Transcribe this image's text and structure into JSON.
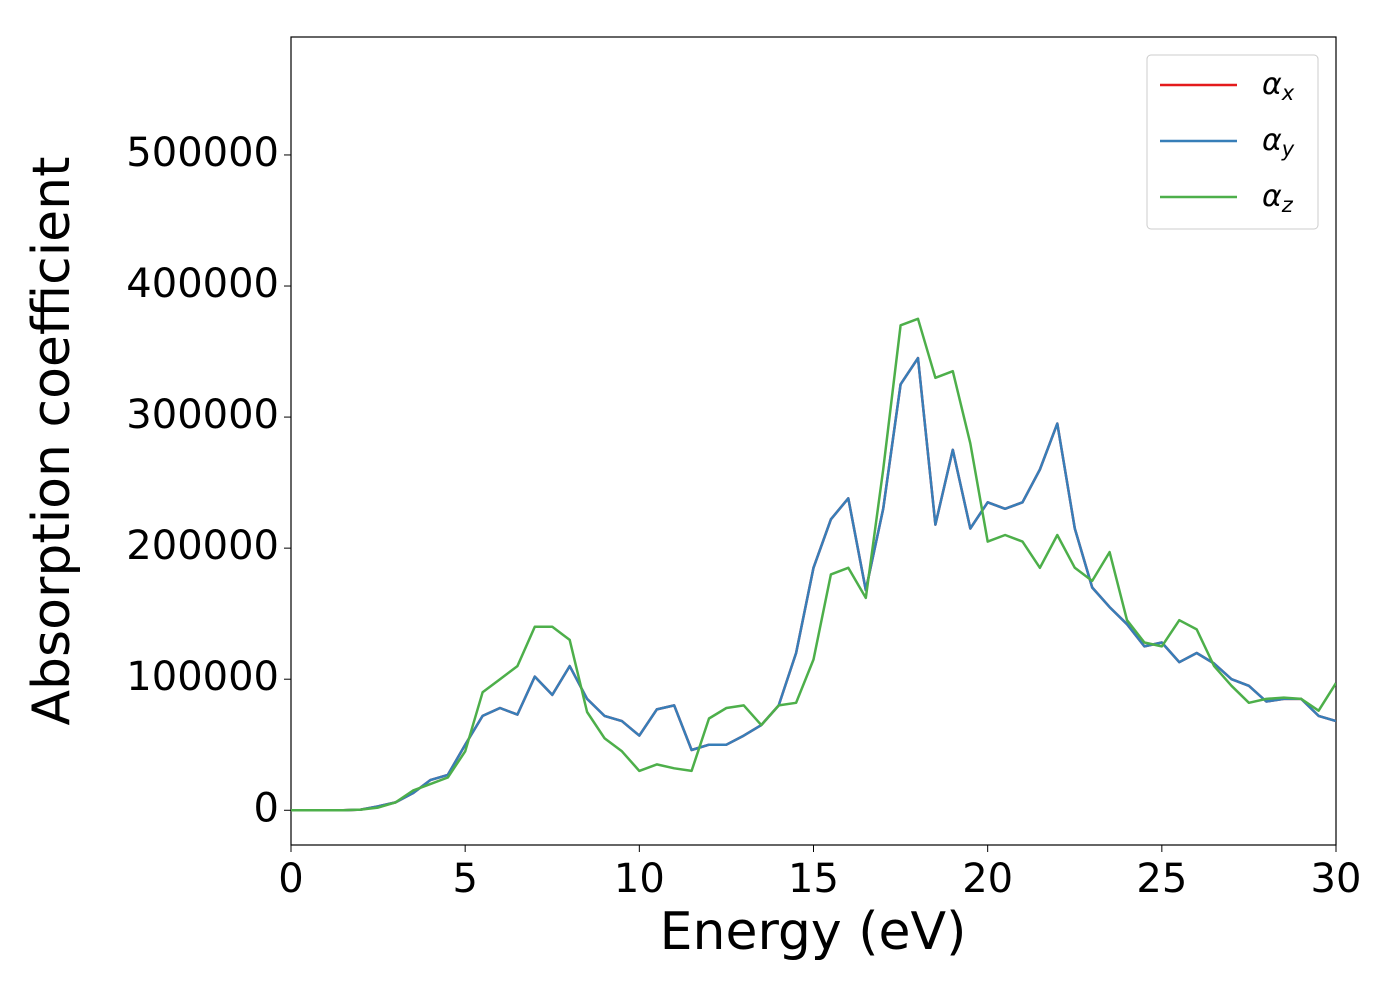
{
  "chart_data": {
    "type": "line",
    "x_label": "Energy (eV)",
    "y_label": "Absorption coefficient",
    "x": [
      0,
      0.5,
      1,
      1.5,
      2,
      2.5,
      3,
      3.5,
      4,
      4.5,
      5,
      5.5,
      6,
      6.5,
      7,
      7.5,
      8,
      8.5,
      9,
      9.5,
      10,
      10.5,
      11,
      11.5,
      12,
      12.5,
      13,
      13.5,
      14,
      14.5,
      15,
      15.5,
      16,
      16.5,
      17,
      17.5,
      18,
      18.5,
      19,
      19.5,
      20,
      20.5,
      21,
      21.5,
      22,
      22.5,
      23,
      23.5,
      24,
      24.5,
      25,
      25.5,
      26,
      26.5,
      27,
      27.5,
      28,
      28.5,
      29,
      29.5,
      30
    ],
    "series": [
      {
        "name": "αx",
        "color": "#e41a1c",
        "values": [
          0,
          0,
          0,
          0,
          500,
          3000,
          6000,
          13000,
          23000,
          27000,
          50000,
          72000,
          78000,
          73000,
          102000,
          88000,
          110000,
          85000,
          72000,
          68000,
          57000,
          77000,
          80000,
          46000,
          50000,
          50000,
          57000,
          65000,
          80000,
          120000,
          185000,
          222000,
          238000,
          168000,
          230000,
          325000,
          345000,
          218000,
          275000,
          215000,
          235000,
          230000,
          235000,
          260000,
          295000,
          215000,
          170000,
          155000,
          142000,
          125000,
          128000,
          113000,
          120000,
          112000,
          100000,
          95000,
          83000,
          85000,
          85000,
          72000,
          68000
        ]
      },
      {
        "name": "αy",
        "color": "#377eb8",
        "values": [
          0,
          0,
          0,
          0,
          500,
          3000,
          6000,
          13000,
          23000,
          27000,
          50000,
          72000,
          78000,
          73000,
          102000,
          88000,
          110000,
          85000,
          72000,
          68000,
          57000,
          77000,
          80000,
          46000,
          50000,
          50000,
          57000,
          65000,
          80000,
          120000,
          185000,
          222000,
          238000,
          168000,
          230000,
          325000,
          345000,
          218000,
          275000,
          215000,
          235000,
          230000,
          235000,
          260000,
          295000,
          215000,
          170000,
          155000,
          142000,
          125000,
          128000,
          113000,
          120000,
          112000,
          100000,
          95000,
          83000,
          85000,
          85000,
          72000,
          68000
        ]
      },
      {
        "name": "αz",
        "color": "#4daf4a",
        "values": [
          0,
          0,
          0,
          0,
          500,
          2000,
          6000,
          15000,
          20000,
          25000,
          45000,
          90000,
          100000,
          110000,
          140000,
          140000,
          130000,
          75000,
          55000,
          45000,
          30000,
          35000,
          32000,
          30000,
          70000,
          78000,
          80000,
          65000,
          80000,
          82000,
          115000,
          180000,
          185000,
          162000,
          260000,
          370000,
          375000,
          330000,
          335000,
          280000,
          205000,
          210000,
          205000,
          185000,
          210000,
          185000,
          175000,
          197000,
          145000,
          128000,
          125000,
          145000,
          138000,
          110000,
          95000,
          82000,
          85000,
          86000,
          85000,
          76000,
          97000
        ]
      }
    ],
    "xlim": [
      0,
      30
    ],
    "xticks": [
      0,
      5,
      10,
      15,
      20,
      25,
      30
    ],
    "ylim": [
      -26500,
      590000
    ],
    "yticks": [
      0,
      100000,
      200000,
      300000,
      400000,
      500000
    ],
    "legend": "upper right"
  }
}
